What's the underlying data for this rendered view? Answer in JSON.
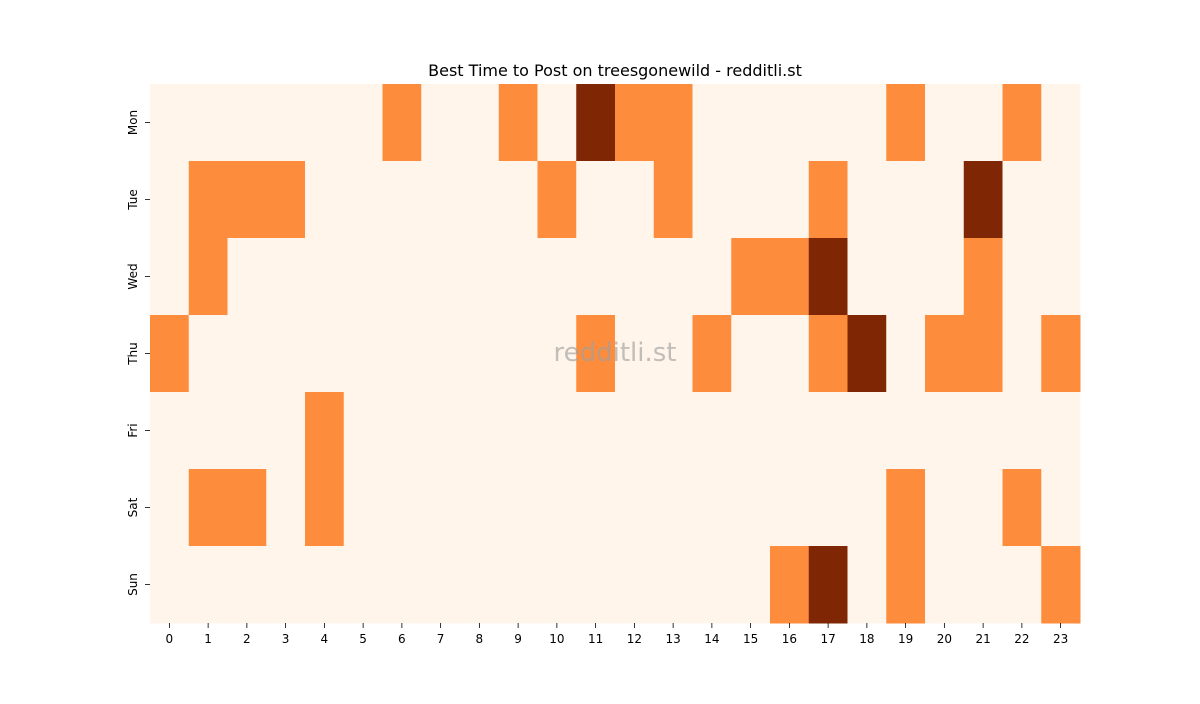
{
  "chart_data": {
    "type": "heatmap",
    "title": "Best Time to Post on treesgonewild - redditli.st",
    "watermark": "redditli.st",
    "xlabel": "",
    "ylabel": "",
    "x_categories": [
      "0",
      "1",
      "2",
      "3",
      "4",
      "5",
      "6",
      "7",
      "8",
      "9",
      "10",
      "11",
      "12",
      "13",
      "14",
      "15",
      "16",
      "17",
      "18",
      "19",
      "20",
      "21",
      "22",
      "23"
    ],
    "y_categories": [
      "Mon",
      "Tue",
      "Wed",
      "Thu",
      "Fri",
      "Sat",
      "Sun"
    ],
    "values": [
      [
        0,
        0,
        0,
        0,
        0,
        0,
        1,
        0,
        0,
        1,
        0,
        2,
        1,
        1,
        0,
        0,
        0,
        0,
        0,
        1,
        0,
        0,
        1,
        0
      ],
      [
        0,
        1,
        1,
        1,
        0,
        0,
        0,
        0,
        0,
        0,
        1,
        0,
        0,
        1,
        0,
        0,
        0,
        1,
        0,
        0,
        0,
        2,
        0,
        0
      ],
      [
        0,
        1,
        0,
        0,
        0,
        0,
        0,
        0,
        0,
        0,
        0,
        0,
        0,
        0,
        0,
        1,
        1,
        2,
        0,
        0,
        0,
        1,
        0,
        0
      ],
      [
        1,
        0,
        0,
        0,
        0,
        0,
        0,
        0,
        0,
        0,
        0,
        1,
        0,
        0,
        1,
        0,
        0,
        1,
        2,
        0,
        1,
        1,
        0,
        1
      ],
      [
        0,
        0,
        0,
        0,
        1,
        0,
        0,
        0,
        0,
        0,
        0,
        0,
        0,
        0,
        0,
        0,
        0,
        0,
        0,
        0,
        0,
        0,
        0,
        0
      ],
      [
        0,
        1,
        1,
        0,
        1,
        0,
        0,
        0,
        0,
        0,
        0,
        0,
        0,
        0,
        0,
        0,
        0,
        0,
        0,
        1,
        0,
        0,
        1,
        0
      ],
      [
        0,
        0,
        0,
        0,
        0,
        0,
        0,
        0,
        0,
        0,
        0,
        0,
        0,
        0,
        0,
        0,
        1,
        2,
        0,
        1,
        0,
        0,
        0,
        1
      ]
    ],
    "value_range": [
      0,
      2
    ],
    "colormap": "Oranges",
    "colors": {
      "low": "#fff5eb",
      "mid": "#fd8d3c",
      "high": "#7f2704"
    },
    "grid": false,
    "colorbar": false
  }
}
